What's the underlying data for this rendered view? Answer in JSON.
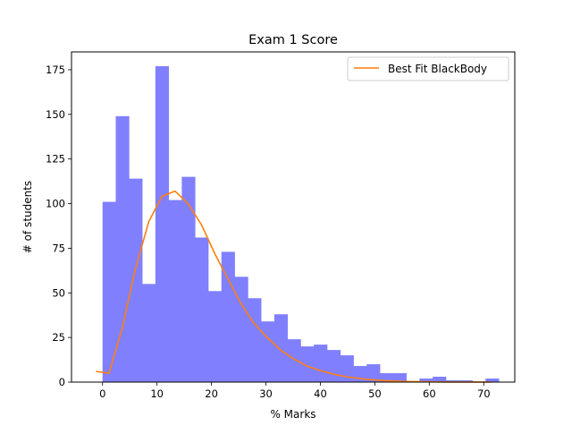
{
  "chart_data": {
    "type": "bar",
    "title": "Exam 1 Score",
    "xlabel": "% Marks",
    "ylabel": "# of students",
    "xlim": [
      -5.7,
      75.7
    ],
    "ylim": [
      0,
      185
    ],
    "xticks": [
      0,
      10,
      20,
      30,
      40,
      50,
      60,
      70
    ],
    "yticks": [
      0,
      25,
      50,
      75,
      100,
      125,
      150,
      175
    ],
    "grid": false,
    "legend_position": "top-right",
    "bins": {
      "edges": [
        0,
        2.425,
        4.85,
        7.275,
        9.7,
        12.125,
        14.55,
        16.975,
        19.4,
        21.825,
        24.25,
        26.675,
        29.1,
        31.525,
        33.95,
        36.375,
        38.8,
        41.225,
        43.65,
        46.075,
        48.5,
        50.925,
        53.35,
        55.775,
        58.2,
        60.625,
        63.05,
        65.475,
        67.9,
        70.325,
        72.75
      ],
      "counts": [
        101,
        149,
        114,
        55,
        177,
        102,
        115,
        81,
        51,
        73,
        59,
        47,
        34,
        38,
        24,
        20,
        21,
        18,
        15,
        9,
        10,
        5,
        5,
        0,
        2,
        3,
        1,
        1,
        0,
        2
      ],
      "color": "#8080ff"
    },
    "series": [
      {
        "name": "Best Fit BlackBody",
        "type": "line",
        "color": "#ff7f0e",
        "x": [
          -1.2,
          1.2,
          3.6,
          6.0,
          8.5,
          10.9,
          13.3,
          15.7,
          18.2,
          20.6,
          23.0,
          25.4,
          27.8,
          30.2,
          32.7,
          35.1,
          37.5,
          39.9,
          42.3,
          44.8,
          47.2,
          49.6,
          52.0,
          54.4,
          56.8,
          59.3,
          61.7,
          64.1,
          66.5,
          68.9,
          71.4
        ],
        "y": [
          6,
          5,
          30,
          63,
          90,
          104,
          107,
          100,
          88,
          72,
          58,
          44,
          33,
          25,
          18,
          13,
          9,
          6.5,
          4.5,
          3,
          2,
          1.3,
          0.8,
          0.5,
          0.3,
          0.2,
          0.1,
          0.05,
          0.03,
          0.01,
          0
        ]
      }
    ]
  }
}
